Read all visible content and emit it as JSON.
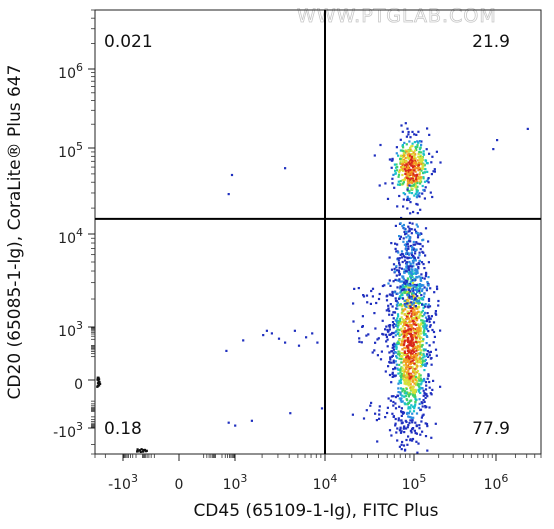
{
  "watermark": "WWW.PTGLAB.COM",
  "chart_data": {
    "type": "scatter",
    "subtype": "flow-cytometry-density-dot-plot",
    "xlabel": "CD45 (65109-1-Ig), FITC Plus",
    "ylabel": "CD20 (65085-1-Ig), CoraLite® Plus 647",
    "x_scale": "biexponential",
    "y_scale": "biexponential",
    "xlim": [
      -3000,
      5000000
    ],
    "ylim": [
      -3000,
      5000000
    ],
    "x_ticks": [
      {
        "value": -1000,
        "label_base": "-10",
        "label_exp": "3"
      },
      {
        "value": 0,
        "label_base": "0",
        "label_exp": ""
      },
      {
        "value": 1000,
        "label_base": "10",
        "label_exp": "3"
      },
      {
        "value": 10000,
        "label_base": "10",
        "label_exp": "4"
      },
      {
        "value": 100000,
        "label_base": "10",
        "label_exp": "5"
      },
      {
        "value": 1000000,
        "label_base": "10",
        "label_exp": "6"
      }
    ],
    "y_ticks": [
      {
        "value": -1000,
        "label_base": "-10",
        "label_exp": "3"
      },
      {
        "value": 0,
        "label_base": "0",
        "label_exp": ""
      },
      {
        "value": 1000,
        "label_base": "10",
        "label_exp": "3"
      },
      {
        "value": 10000,
        "label_base": "10",
        "label_exp": "4"
      },
      {
        "value": 100000,
        "label_base": "10",
        "label_exp": "5"
      },
      {
        "value": 1000000,
        "label_base": "10",
        "label_exp": "6"
      }
    ],
    "quadrant_gate": {
      "x": 10000,
      "y": 15000
    },
    "quadrants": [
      {
        "position": "top-left",
        "percent": "0.021"
      },
      {
        "position": "top-right",
        "percent": "21.9"
      },
      {
        "position": "bottom-left",
        "percent": "0.18"
      },
      {
        "position": "bottom-right",
        "percent": "77.9"
      }
    ],
    "populations": [
      {
        "x_center": 90000,
        "y_center": 60000,
        "share": 0.219
      },
      {
        "x_center": 90000,
        "y_center": 200,
        "share": 0.779
      }
    ],
    "density_colors": [
      "#1f2fbf",
      "#2b8de0",
      "#19c2c9",
      "#3fd26a",
      "#d8e23a",
      "#f39c22",
      "#d8261b"
    ],
    "grid": false,
    "legend": "none"
  }
}
